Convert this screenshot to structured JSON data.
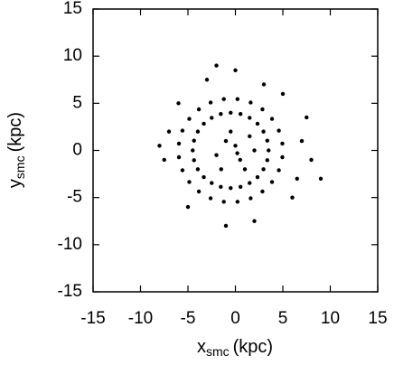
{
  "chart_data": {
    "type": "scatter",
    "xlabel": {
      "text": "x",
      "subscript": "smc",
      "suffix": "(kpc)"
    },
    "ylabel": {
      "text": "y",
      "subscript": "smc",
      "suffix": "(kpc)"
    },
    "xlim": [
      -15,
      15
    ],
    "ylim": [
      -15,
      15
    ],
    "xticks": [
      -15,
      -10,
      -5,
      0,
      5,
      10,
      15
    ],
    "yticks": [
      -15,
      -10,
      -5,
      0,
      5,
      10,
      15
    ],
    "color": "#000000",
    "x": [
      3.5,
      3.36,
      2.96,
      2.33,
      1.5,
      0.54,
      -0.5,
      -1.54,
      -2.5,
      -3.33,
      -3.96,
      -4.36,
      -4.5,
      -4.36,
      -3.96,
      -3.33,
      -2.5,
      -1.54,
      -0.5,
      0.54,
      1.5,
      2.33,
      2.96,
      3.36,
      4.95,
      4.58,
      3.86,
      2.85,
      1.61,
      0.22,
      -1.22,
      -2.61,
      -3.85,
      -4.86,
      -5.58,
      -5.95,
      -5.95,
      -5.58,
      -4.86,
      -3.85,
      -2.61,
      -1.22,
      0.22,
      1.61,
      2.85,
      3.86,
      4.58,
      4.95,
      -1,
      0.5,
      1.5,
      -2,
      0,
      1,
      -1.5,
      2,
      -0.5,
      0.2,
      7,
      6.5,
      8,
      -7.5,
      -7,
      3,
      -3,
      0,
      5,
      -6,
      -5,
      2,
      6,
      -8,
      9,
      -1,
      7.5,
      -2
    ],
    "y": [
      0,
      1.04,
      2.0,
      2.83,
      3.46,
      3.86,
      4,
      3.86,
      3.46,
      2.83,
      2.0,
      1.04,
      0,
      -1.04,
      -2.0,
      -2.83,
      -3.46,
      -3.86,
      -4,
      -3.86,
      -3.46,
      -2.83,
      -2.0,
      -1.04,
      0.72,
      2.1,
      3.35,
      4.36,
      5.08,
      5.45,
      5.45,
      5.08,
      4.36,
      3.35,
      2.1,
      0.72,
      -0.72,
      -2.1,
      -3.35,
      -4.36,
      -5.08,
      -5.45,
      -5.45,
      -5.08,
      -4.36,
      -3.35,
      -2.1,
      -0.72,
      1,
      -1,
      1.5,
      -0.5,
      0.5,
      -2,
      -2,
      0,
      2,
      -0.3,
      1,
      -3,
      -1,
      -1,
      2,
      7,
      7.5,
      8.5,
      6,
      5,
      -6,
      -7.5,
      -5,
      0.5,
      -3,
      -8,
      3.5,
      9
    ]
  }
}
